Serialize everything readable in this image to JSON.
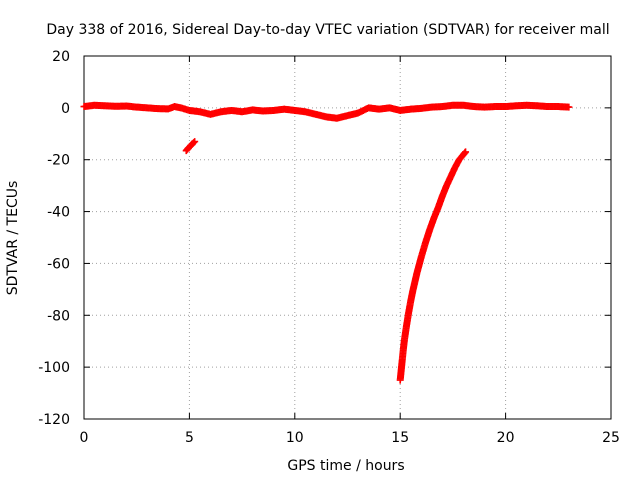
{
  "chart_data": {
    "type": "scatter",
    "title": "Day 338 of 2016, Sidereal Day-to-day VTEC variation (SDTVAR) for receiver mall",
    "xlabel": "GPS time / hours",
    "ylabel": "SDTVAR / TECUs",
    "xlim": [
      0,
      25
    ],
    "ylim": [
      -120,
      20
    ],
    "xticks": [
      0,
      5,
      10,
      15,
      20,
      25
    ],
    "yticks": [
      -120,
      -100,
      -80,
      -60,
      -40,
      -20,
      0,
      20
    ],
    "grid": true,
    "marker": "plus",
    "color": "#ff0000",
    "series": [
      {
        "segments": [
          {
            "x": [
              0.0,
              0.5,
              1.0,
              1.5,
              2.0,
              2.5,
              3.0,
              3.5,
              4.0,
              4.3,
              4.6,
              5.0,
              5.5,
              6.0,
              6.5,
              7.0,
              7.5,
              8.0,
              8.5,
              9.0,
              9.5,
              10.0,
              10.5,
              11.0,
              11.5,
              12.0,
              12.5,
              13.0,
              13.5,
              14.0,
              14.5,
              15.0,
              15.5,
              16.0,
              16.5,
              17.0,
              17.5,
              18.0,
              18.5,
              19.0,
              19.5,
              20.0,
              20.5,
              21.0,
              21.5,
              22.0,
              22.5,
              23.0
            ],
            "y": [
              0.5,
              1.0,
              0.8,
              0.6,
              0.7,
              0.3,
              0.0,
              -0.3,
              -0.4,
              0.5,
              0.0,
              -1.0,
              -1.5,
              -2.5,
              -1.5,
              -1.0,
              -1.5,
              -0.8,
              -1.2,
              -1.0,
              -0.5,
              -1.0,
              -1.5,
              -2.5,
              -3.5,
              -4.0,
              -3.0,
              -2.0,
              0.0,
              -0.5,
              0.0,
              -1.0,
              -0.5,
              -0.2,
              0.3,
              0.5,
              1.0,
              1.0,
              0.5,
              0.3,
              0.5,
              0.5,
              0.8,
              1.0,
              0.8,
              0.5,
              0.5,
              0.3
            ]
          },
          {
            "x": [
              4.85,
              4.95,
              5.05,
              5.15,
              5.25
            ],
            "y": [
              -16.5,
              -15.5,
              -14.7,
              -13.8,
              -13.0
            ]
          },
          {
            "x": [
              15.0,
              15.05,
              15.1,
              15.15,
              15.2,
              15.3,
              15.4,
              15.5,
              15.6,
              15.7,
              15.8,
              15.9,
              16.0,
              16.2,
              16.4,
              16.6,
              16.8,
              17.0,
              17.2,
              17.4,
              17.6,
              17.8,
              18.0,
              18.1
            ],
            "y": [
              -105,
              -101,
              -97,
              -93,
              -89.5,
              -84,
              -79,
              -74.5,
              -70.5,
              -67,
              -63.5,
              -60.5,
              -57.5,
              -52,
              -47,
              -42.5,
              -38.5,
              -34,
              -30,
              -26.5,
              -23,
              -20,
              -18,
              -17
            ]
          }
        ]
      }
    ]
  }
}
